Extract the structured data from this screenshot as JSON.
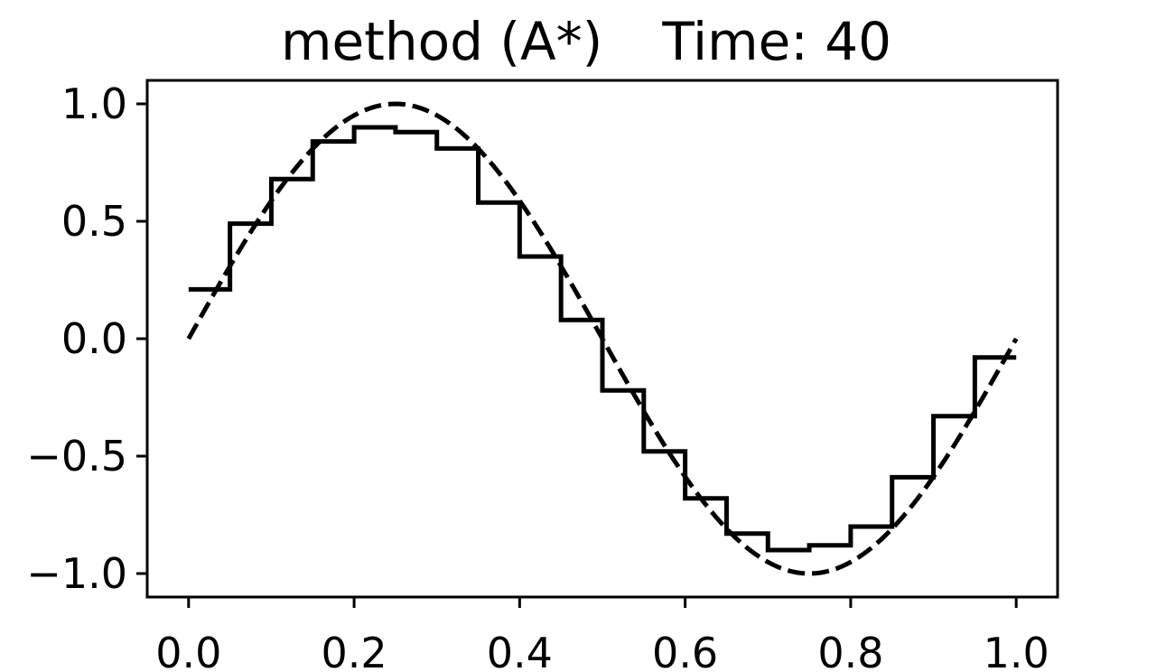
{
  "chart_data": {
    "type": "line",
    "title": "method (A*)",
    "subtitle": "Time: 40",
    "xlabel": "",
    "ylabel": "",
    "xlim": [
      -0.05,
      1.05
    ],
    "ylim": [
      -1.1,
      1.1
    ],
    "grid": false,
    "legend": "none",
    "x_ticks": [
      0.0,
      0.2,
      0.4,
      0.6,
      0.8,
      1.0
    ],
    "x_tick_labels": [
      "0.0",
      "0.2",
      "0.4",
      "0.6",
      "0.8",
      "1.0"
    ],
    "y_ticks": [
      1.0,
      0.5,
      0.0,
      -0.5,
      -1.0
    ],
    "y_tick_labels": [
      "1.0",
      "0.5",
      "0.0",
      "−0.5",
      "−1.0"
    ],
    "series": [
      {
        "style": "dashed",
        "color": "#000000",
        "function": "sin(2*pi*x)",
        "x_range": [
          0.0,
          1.0
        ]
      },
      {
        "style": "step-solid",
        "color": "#000000",
        "x": [
          0.0,
          0.05,
          0.1,
          0.15,
          0.2,
          0.25,
          0.3,
          0.35,
          0.4,
          0.45,
          0.5,
          0.55,
          0.6,
          0.65,
          0.7,
          0.75,
          0.8,
          0.85,
          0.9,
          0.95,
          1.0
        ],
        "y": [
          0.21,
          0.49,
          0.68,
          0.84,
          0.9,
          0.88,
          0.81,
          0.58,
          0.35,
          0.08,
          -0.22,
          -0.48,
          -0.68,
          -0.83,
          -0.9,
          -0.88,
          -0.8,
          -0.59,
          -0.33,
          -0.08,
          -0.08
        ]
      }
    ]
  }
}
